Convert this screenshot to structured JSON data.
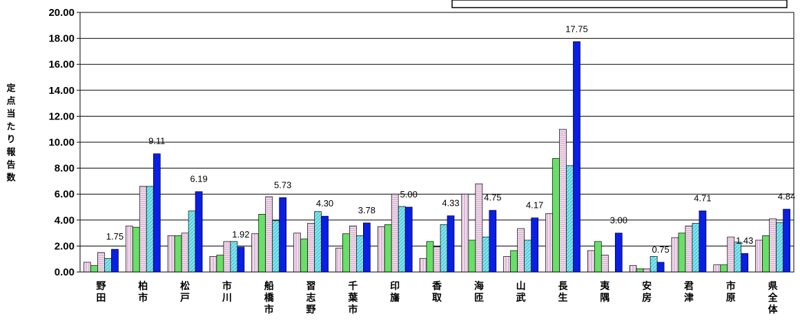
{
  "chart_data": {
    "type": "bar",
    "title": "",
    "ylabel": "定点当たり報告数",
    "xlabel": "",
    "ylim": [
      0,
      20
    ],
    "yticks": [
      "0.00",
      "2.00",
      "4.00",
      "6.00",
      "8.00",
      "10.00",
      "12.00",
      "14.00",
      "16.00",
      "18.00",
      "20.00"
    ],
    "grid": true,
    "legend": "top-right",
    "categories": [
      "野田",
      "柏市",
      "松戸",
      "市川",
      "船橋市",
      "習志野",
      "千葉市",
      "印旛",
      "香取",
      "海匝",
      "山武",
      "長生",
      "夷隅",
      "安房",
      "君津",
      "市原",
      "県全体"
    ],
    "series": [
      {
        "values": [
          0.75,
          3.55,
          2.8,
          1.2,
          2.95,
          3.0,
          1.85,
          3.5,
          1.05,
          6.0,
          1.2,
          4.5,
          1.65,
          0.5,
          2.65,
          0.55,
          2.45
        ],
        "color": "#f4dcf0",
        "pattern": "hatch-v"
      },
      {
        "values": [
          0.5,
          3.45,
          2.8,
          1.3,
          4.45,
          2.55,
          2.95,
          3.65,
          2.35,
          2.45,
          1.65,
          8.75,
          2.35,
          0.25,
          3.0,
          0.55,
          2.8
        ],
        "color": "#66e066",
        "pattern": "none"
      },
      {
        "values": [
          1.5,
          6.6,
          3.0,
          2.35,
          5.8,
          3.75,
          3.55,
          6.0,
          1.95,
          6.8,
          3.35,
          11.0,
          1.3,
          0.25,
          3.55,
          2.7,
          4.1
        ],
        "color": "#f4d8ec",
        "pattern": "hatch-h"
      },
      {
        "values": [
          1.05,
          6.6,
          4.7,
          2.35,
          3.95,
          4.65,
          2.8,
          5.05,
          3.65,
          2.7,
          2.45,
          8.2,
          0,
          1.2,
          3.75,
          2.3,
          3.8
        ],
        "color": "#7ee8f0",
        "pattern": "hatch-d"
      },
      {
        "values": [
          1.75,
          9.11,
          6.19,
          1.92,
          5.73,
          4.3,
          3.78,
          5.0,
          4.33,
          4.75,
          4.17,
          17.75,
          3.0,
          0.75,
          4.71,
          1.43,
          4.84
        ],
        "color": "#0a1ee6",
        "pattern": "none"
      }
    ],
    "data_labels": [
      "1.75",
      "9.11",
      "6.19",
      "1.92",
      "5.73",
      "4.30",
      "3.78",
      "5.00",
      "4.33",
      "4.75",
      "4.17",
      "17.75",
      "3.00",
      "0.75",
      "4.71",
      "1.43",
      "4.84"
    ]
  },
  "colors": {
    "border": "#000000",
    "gridline": "#000000",
    "background": "#ffffff"
  }
}
